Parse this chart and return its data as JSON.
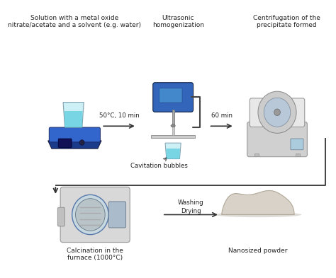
{
  "bg_color": "#ffffff",
  "fig_width": 4.74,
  "fig_height": 3.93,
  "dpi": 100,
  "labels": {
    "step1_title": "Solution with a metal oxide\nnitrate/acetate and a solvent (e.g. water)",
    "step2_title": "Ultrasonic\nhomogenization",
    "step3_title": "Centrifugation of the\nprecipitate formed",
    "step4_title": "Calcination in the\nfurnace (1000°C)",
    "step5_title": "Nanosized powder",
    "arrow1_label": "50°C, 10 min",
    "arrow2_label": "60 min",
    "arrow3_label_1": "Washing",
    "arrow3_label_2": "Drying",
    "cavitation_label": "Cavitation bubbles"
  },
  "colors": {
    "hotplate_base": "#1a3a8a",
    "hotplate_top": "#2255bb",
    "beaker_fill": "#aaddee",
    "beaker_liquid": "#55ccdd",
    "sonicator_body": "#3366bb",
    "sonicator_rod": "#bbbbbb",
    "centrifuge_body": "#d0d0d0",
    "centrifuge_lid": "#e8e8e8",
    "furnace_body": "#d8d8d8",
    "furnace_door": "#c0c8d0",
    "powder_fill": "#d8d0c4",
    "arrow_color": "#333333",
    "text_color": "#222222",
    "connector_color": "#333333"
  },
  "fontsize_title": 6.5,
  "fontsize_label": 6.2,
  "fontsize_small": 5.8
}
